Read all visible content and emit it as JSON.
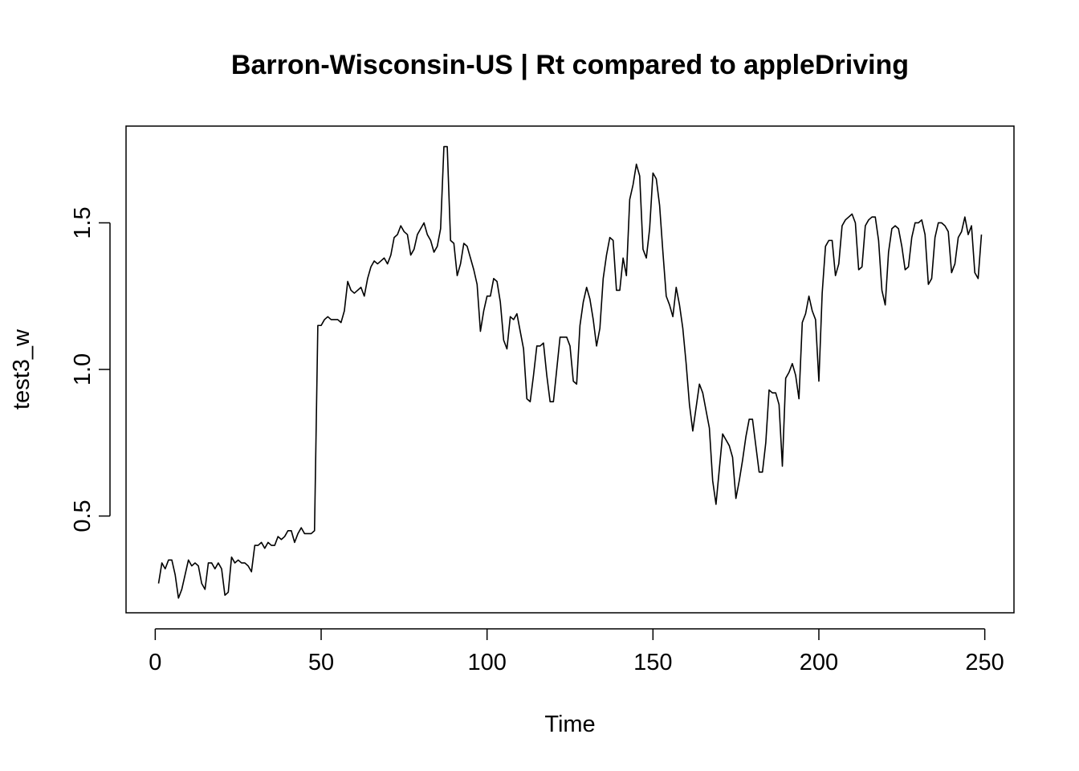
{
  "chart_data": {
    "type": "line",
    "title": "Barron-Wisconsin-US | Rt compared to appleDriving",
    "xlabel": "Time",
    "ylabel": "test3_w",
    "xlim": [
      -8.8,
      258.8
    ],
    "ylim": [
      0.17,
      1.83
    ],
    "xticks": [
      0,
      50,
      100,
      150,
      200,
      250
    ],
    "xtick_labels": [
      "0",
      "50",
      "100",
      "150",
      "200",
      "250"
    ],
    "yticks": [
      0.5,
      1.0,
      1.5
    ],
    "ytick_labels": [
      "0.5",
      "1.0",
      "1.5"
    ],
    "grid": false,
    "legend": "none",
    "line_color": "#000000",
    "series": [
      {
        "x_start": 1,
        "x_step": 1,
        "values": [
          0.27,
          0.34,
          0.32,
          0.35,
          0.35,
          0.3,
          0.22,
          0.25,
          0.3,
          0.35,
          0.33,
          0.34,
          0.33,
          0.27,
          0.25,
          0.34,
          0.34,
          0.32,
          0.34,
          0.32,
          0.23,
          0.24,
          0.36,
          0.34,
          0.35,
          0.34,
          0.34,
          0.33,
          0.31,
          0.4,
          0.4,
          0.41,
          0.39,
          0.41,
          0.4,
          0.4,
          0.43,
          0.42,
          0.43,
          0.45,
          0.45,
          0.41,
          0.44,
          0.46,
          0.44,
          0.44,
          0.44,
          0.45,
          1.15,
          1.15,
          1.17,
          1.18,
          1.17,
          1.17,
          1.17,
          1.16,
          1.2,
          1.3,
          1.27,
          1.26,
          1.27,
          1.28,
          1.25,
          1.31,
          1.35,
          1.37,
          1.36,
          1.37,
          1.38,
          1.36,
          1.39,
          1.45,
          1.46,
          1.49,
          1.47,
          1.46,
          1.39,
          1.41,
          1.46,
          1.48,
          1.5,
          1.46,
          1.44,
          1.4,
          1.42,
          1.48,
          1.76,
          1.76,
          1.44,
          1.43,
          1.32,
          1.36,
          1.43,
          1.42,
          1.38,
          1.34,
          1.29,
          1.13,
          1.2,
          1.25,
          1.25,
          1.31,
          1.3,
          1.23,
          1.1,
          1.07,
          1.18,
          1.17,
          1.19,
          1.13,
          1.07,
          0.9,
          0.89,
          0.98,
          1.08,
          1.08,
          1.09,
          0.98,
          0.89,
          0.89,
          1.0,
          1.11,
          1.11,
          1.11,
          1.08,
          0.96,
          0.95,
          1.15,
          1.23,
          1.28,
          1.24,
          1.17,
          1.08,
          1.14,
          1.31,
          1.39,
          1.45,
          1.44,
          1.27,
          1.27,
          1.38,
          1.32,
          1.58,
          1.63,
          1.7,
          1.66,
          1.41,
          1.38,
          1.48,
          1.67,
          1.65,
          1.56,
          1.4,
          1.25,
          1.22,
          1.18,
          1.28,
          1.22,
          1.14,
          1.02,
          0.88,
          0.79,
          0.87,
          0.95,
          0.92,
          0.86,
          0.8,
          0.62,
          0.54,
          0.66,
          0.78,
          0.76,
          0.74,
          0.7,
          0.56,
          0.62,
          0.69,
          0.77,
          0.83,
          0.83,
          0.74,
          0.65,
          0.65,
          0.75,
          0.93,
          0.92,
          0.92,
          0.88,
          0.67,
          0.97,
          0.99,
          1.02,
          0.98,
          0.9,
          1.16,
          1.19,
          1.25,
          1.2,
          1.17,
          0.96,
          1.26,
          1.42,
          1.44,
          1.44,
          1.32,
          1.36,
          1.49,
          1.51,
          1.52,
          1.53,
          1.5,
          1.34,
          1.35,
          1.49,
          1.51,
          1.52,
          1.52,
          1.44,
          1.27,
          1.22,
          1.4,
          1.48,
          1.49,
          1.48,
          1.42,
          1.34,
          1.35,
          1.45,
          1.5,
          1.5,
          1.51,
          1.46,
          1.29,
          1.31,
          1.45,
          1.5,
          1.5,
          1.49,
          1.47,
          1.33,
          1.36,
          1.45,
          1.47,
          1.52,
          1.46,
          1.49,
          1.33,
          1.31,
          1.46
        ]
      }
    ]
  }
}
